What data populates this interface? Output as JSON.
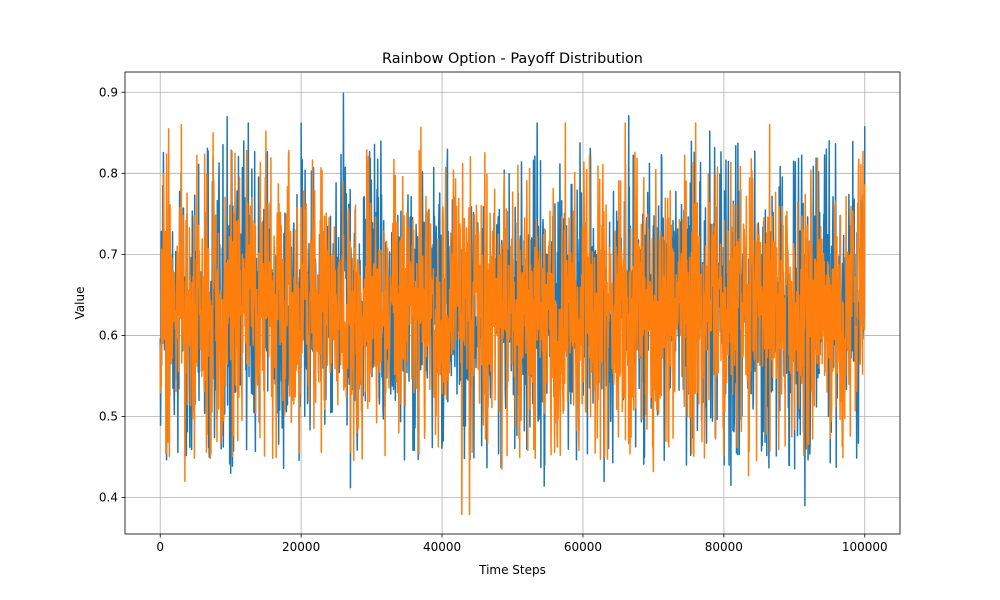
{
  "chart_data": {
    "type": "line",
    "title": "Rainbow Option - Payoff Distribution",
    "xlabel": "Time Steps",
    "ylabel": "Value",
    "xlim": [
      -5000,
      105000
    ],
    "ylim": [
      0.355,
      0.925
    ],
    "grid": true,
    "x_ticks": [
      0,
      20000,
      40000,
      60000,
      80000,
      100000
    ],
    "x_tick_labels": [
      "0",
      "20000",
      "40000",
      "60000",
      "80000",
      "100000"
    ],
    "y_ticks": [
      0.4,
      0.5,
      0.6,
      0.7,
      0.8,
      0.9
    ],
    "y_tick_labels": [
      "0.4",
      "0.5",
      "0.6",
      "0.7",
      "0.8",
      "0.9"
    ],
    "x_range": [
      0,
      100000
    ],
    "series": [
      {
        "color": "#1f77b4",
        "body_range": [
          0.47,
          0.8
        ],
        "peaks": [
          {
            "x": 9500,
            "y": 0.87
          },
          {
            "x": 12500,
            "y": 0.862
          },
          {
            "x": 20000,
            "y": 0.862
          },
          {
            "x": 26000,
            "y": 0.899
          },
          {
            "x": 53500,
            "y": 0.862
          },
          {
            "x": 66500,
            "y": 0.871
          },
          {
            "x": 78000,
            "y": 0.852
          },
          {
            "x": 100000,
            "y": 0.858
          }
        ],
        "troughs": [
          {
            "x": 10000,
            "y": 0.43
          },
          {
            "x": 27000,
            "y": 0.412
          },
          {
            "x": 54500,
            "y": 0.414
          },
          {
            "x": 63000,
            "y": 0.42
          },
          {
            "x": 81000,
            "y": 0.415
          },
          {
            "x": 91500,
            "y": 0.39
          }
        ]
      },
      {
        "color": "#ff7f0e",
        "body_range": [
          0.48,
          0.79
        ],
        "peaks": [
          {
            "x": 1200,
            "y": 0.855
          },
          {
            "x": 3000,
            "y": 0.86
          },
          {
            "x": 7500,
            "y": 0.85
          },
          {
            "x": 15000,
            "y": 0.852
          },
          {
            "x": 37000,
            "y": 0.857
          },
          {
            "x": 57500,
            "y": 0.862
          },
          {
            "x": 66000,
            "y": 0.862
          },
          {
            "x": 76000,
            "y": 0.862
          },
          {
            "x": 86500,
            "y": 0.86
          }
        ],
        "troughs": [
          {
            "x": 3500,
            "y": 0.42
          },
          {
            "x": 42800,
            "y": 0.379
          },
          {
            "x": 43900,
            "y": 0.379
          },
          {
            "x": 48500,
            "y": 0.435
          },
          {
            "x": 70000,
            "y": 0.432
          },
          {
            "x": 83500,
            "y": 0.427
          }
        ]
      }
    ]
  }
}
